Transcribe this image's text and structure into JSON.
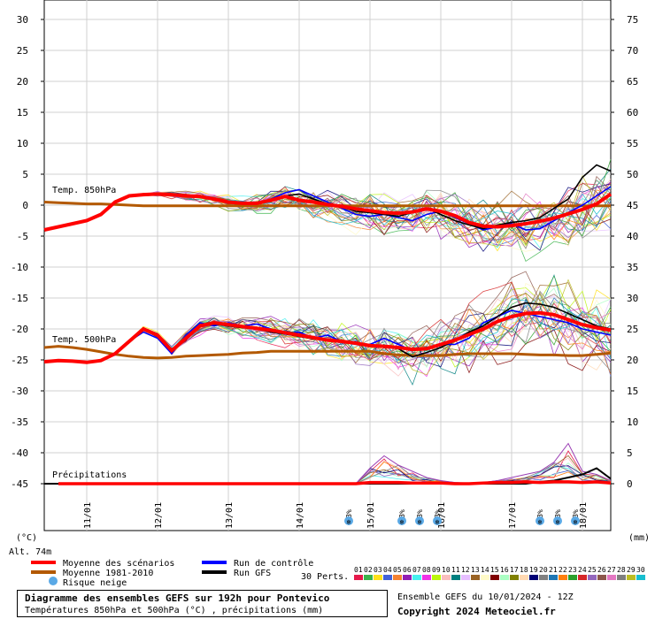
{
  "header_units": {
    "left": "(°C)",
    "right": "(mm)",
    "altitude": "Alt. 74m"
  },
  "legend": {
    "mean_scenarios": "Moyenne des scénarios",
    "control_run": "Run de contrôle",
    "mean_1981": "Moyenne 1981-2010",
    "gfs_run": "Run GFS",
    "snow_risk": "Risque neige",
    "perts_label": "30 Perts.",
    "colors": {
      "mean": "#ff0000",
      "control": "#0000ff",
      "climate": "#b35900",
      "gfs": "#000000"
    }
  },
  "members": {
    "labels": [
      "01",
      "02",
      "03",
      "04",
      "05",
      "06",
      "07",
      "08",
      "09",
      "10",
      "11",
      "12",
      "13",
      "14",
      "15",
      "16",
      "17",
      "18",
      "19",
      "20",
      "21",
      "22",
      "23",
      "24",
      "25",
      "26",
      "27",
      "28",
      "29",
      "30"
    ],
    "colors": [
      "#e6194b",
      "#3cb44b",
      "#ffe119",
      "#4363d8",
      "#f58231",
      "#911eb4",
      "#46f0f0",
      "#f032e6",
      "#bcf60c",
      "#fabebe",
      "#008080",
      "#e6beff",
      "#9a6324",
      "#fffac8",
      "#800000",
      "#aaffc3",
      "#808000",
      "#ffd8b1",
      "#000075",
      "#808080",
      "#1f77b4",
      "#ff7f0e",
      "#2ca02c",
      "#d62728",
      "#9467bd",
      "#8c564b",
      "#e377c2",
      "#7f7f7f",
      "#bcbd22",
      "#17becf"
    ]
  },
  "title": {
    "line1": "Diagramme des ensembles GEFS sur 192h pour Pontevico",
    "line2": "Températures 850hPa et 500hPa (°C) , précipitations (mm)"
  },
  "footer": {
    "run": "Ensemble GEFS du 10/01/2024 - 12Z",
    "copyright": "Copyright 2024 Meteociel.fr"
  },
  "chart_data": {
    "type": "line",
    "x_labels": [
      "11/01",
      "12/01",
      "13/01",
      "14/01",
      "15/01",
      "16/01",
      "17/01",
      "18/01"
    ],
    "left_axis": {
      "ticks": [
        30,
        25,
        20,
        15,
        10,
        5,
        0,
        -5,
        -10,
        -15,
        -20,
        -25,
        -30,
        -35,
        -40,
        -45
      ]
    },
    "right_axis": {
      "ticks": [
        75,
        70,
        65,
        60,
        55,
        50,
        45,
        40,
        35,
        30,
        25,
        20,
        15,
        10,
        5,
        0
      ]
    },
    "section_labels": {
      "t850": "Temp. 850hPa",
      "t500": "Temp. 500hPa",
      "precip": "Précipitations"
    },
    "day_range": [
      -0.6,
      7.4
    ],
    "t850": {
      "days": [
        -0.6,
        -0.4,
        -0.2,
        0.0,
        0.2,
        0.4,
        0.6,
        0.8,
        1.0,
        1.2,
        1.4,
        1.6,
        1.8,
        2.0,
        2.2,
        2.4,
        2.6,
        2.8,
        3.0,
        3.2,
        3.4,
        3.6,
        3.8,
        4.0,
        4.2,
        4.4,
        4.6,
        4.8,
        5.0,
        5.2,
        5.4,
        5.6,
        5.8,
        6.0,
        6.2,
        6.4,
        6.6,
        6.8,
        7.0,
        7.2,
        7.4
      ],
      "mean": [
        -4.0,
        -3.5,
        -3.0,
        -2.5,
        -1.5,
        0.5,
        1.5,
        1.7,
        1.8,
        1.7,
        1.5,
        1.4,
        1.0,
        0.5,
        0.3,
        0.3,
        0.8,
        1.4,
        0.8,
        0.5,
        0.1,
        -0.2,
        -0.6,
        -0.9,
        -1.2,
        -1.3,
        -1.1,
        -0.6,
        -1.0,
        -1.7,
        -2.8,
        -3.4,
        -3.5,
        -3.3,
        -3.0,
        -2.6,
        -2.1,
        -1.4,
        -0.7,
        0.2,
        1.8
      ],
      "control": [
        -4.0,
        -3.5,
        -3.0,
        -2.6,
        -1.4,
        0.5,
        1.4,
        1.6,
        1.7,
        1.6,
        1.4,
        1.3,
        0.9,
        0.6,
        0.5,
        0.3,
        1.0,
        2.0,
        2.5,
        1.5,
        0.5,
        -0.5,
        -1.5,
        -1.8,
        -1.5,
        -2.0,
        -2.5,
        -1.5,
        -1.0,
        -2.0,
        -3.0,
        -4.0,
        -3.5,
        -3.0,
        -4.0,
        -3.8,
        -2.5,
        -1.2,
        0.0,
        1.5,
        3.0
      ],
      "gfs": [
        -4.0,
        -3.5,
        -3.0,
        -2.4,
        -1.5,
        0.6,
        1.5,
        1.8,
        1.9,
        1.6,
        1.5,
        1.3,
        0.9,
        0.6,
        0.3,
        0.2,
        0.7,
        1.5,
        1.8,
        1.0,
        0.2,
        -0.3,
        -1.0,
        -1.2,
        -1.5,
        -1.8,
        -1.2,
        -0.5,
        -1.5,
        -2.5,
        -3.2,
        -3.8,
        -3.2,
        -2.8,
        -2.5,
        -2.0,
        -0.5,
        1.0,
        4.5,
        6.5,
        5.5
      ],
      "climate": [
        0.5,
        0.4,
        0.3,
        0.2,
        0.2,
        0.1,
        0.0,
        -0.1,
        -0.1,
        -0.1,
        -0.1,
        -0.1,
        -0.1,
        -0.1,
        -0.1,
        -0.1,
        -0.1,
        -0.1,
        -0.1,
        -0.1,
        -0.1,
        -0.1,
        -0.1,
        -0.1,
        -0.1,
        -0.1,
        -0.1,
        -0.1,
        -0.1,
        -0.1,
        -0.1,
        -0.1,
        -0.1,
        -0.1,
        -0.1,
        -0.1,
        -0.1,
        -0.1,
        -0.1,
        -0.1,
        -0.1
      ]
    },
    "t500": {
      "days": [
        -0.6,
        -0.4,
        -0.2,
        0.0,
        0.2,
        0.4,
        0.6,
        0.8,
        1.0,
        1.2,
        1.4,
        1.6,
        1.8,
        2.0,
        2.2,
        2.4,
        2.6,
        2.8,
        3.0,
        3.2,
        3.4,
        3.6,
        3.8,
        4.0,
        4.2,
        4.4,
        4.6,
        4.8,
        5.0,
        5.2,
        5.4,
        5.6,
        5.8,
        6.0,
        6.2,
        6.4,
        6.6,
        6.8,
        7.0,
        7.2,
        7.4
      ],
      "mean": [
        -25.3,
        -25.1,
        -25.2,
        -25.4,
        -25.1,
        -24.0,
        -22.0,
        -20.0,
        -21.0,
        -23.5,
        -21.5,
        -19.5,
        -19.0,
        -19.3,
        -19.6,
        -19.9,
        -20.2,
        -20.6,
        -21.0,
        -21.4,
        -21.8,
        -22.0,
        -22.3,
        -22.7,
        -22.8,
        -23.0,
        -23.3,
        -23.2,
        -22.5,
        -21.8,
        -20.9,
        -20.0,
        -18.8,
        -18.0,
        -17.5,
        -17.4,
        -17.7,
        -18.5,
        -19.3,
        -19.8,
        -20.2
      ],
      "control": [
        -25.3,
        -25.1,
        -25.1,
        -25.3,
        -25.0,
        -24.2,
        -22.0,
        -20.5,
        -21.5,
        -24.0,
        -21.0,
        -19.0,
        -19.5,
        -19.0,
        -19.5,
        -19.2,
        -20.0,
        -20.8,
        -20.5,
        -21.5,
        -21.0,
        -22.0,
        -22.5,
        -22.5,
        -21.5,
        -22.5,
        -23.5,
        -23.0,
        -22.5,
        -22.5,
        -21.5,
        -19.0,
        -18.0,
        -17.0,
        -17.5,
        -18.0,
        -18.5,
        -19.0,
        -20.0,
        -20.5,
        -21.0
      ],
      "gfs": [
        -25.3,
        -25.0,
        -25.2,
        -25.5,
        -25.2,
        -24.0,
        -22.2,
        -20.2,
        -21.2,
        -23.2,
        -21.8,
        -19.3,
        -19.2,
        -19.5,
        -19.8,
        -20.0,
        -20.5,
        -20.8,
        -21.2,
        -21.6,
        -21.8,
        -22.0,
        -22.3,
        -22.5,
        -22.8,
        -23.2,
        -24.5,
        -23.8,
        -23.0,
        -21.8,
        -20.5,
        -19.5,
        -18.0,
        -16.5,
        -15.8,
        -16.0,
        -16.5,
        -17.5,
        -18.5,
        -19.5,
        -20.0
      ],
      "climate": [
        -23.0,
        -22.8,
        -23.0,
        -23.3,
        -23.7,
        -24.1,
        -24.4,
        -24.6,
        -24.7,
        -24.6,
        -24.4,
        -24.3,
        -24.2,
        -24.1,
        -23.9,
        -23.8,
        -23.6,
        -23.6,
        -23.6,
        -23.6,
        -23.6,
        -23.6,
        -23.6,
        -23.6,
        -24.0,
        -24.2,
        -24.3,
        -24.3,
        -24.3,
        -24.1,
        -24.0,
        -24.0,
        -24.0,
        -24.0,
        -24.1,
        -24.2,
        -24.2,
        -24.3,
        -24.3,
        -24.1,
        -23.9
      ]
    },
    "precip": {
      "days": [
        -0.6,
        -0.4,
        -0.2,
        0.0,
        0.2,
        0.4,
        0.6,
        0.8,
        1.0,
        1.2,
        1.4,
        1.6,
        1.8,
        2.0,
        2.2,
        2.4,
        2.6,
        2.8,
        3.0,
        3.2,
        3.4,
        3.6,
        3.8,
        4.0,
        4.2,
        4.4,
        4.6,
        4.8,
        5.0,
        5.2,
        5.4,
        5.6,
        5.8,
        6.0,
        6.2,
        6.4,
        6.6,
        6.8,
        7.0,
        7.2,
        7.4
      ],
      "mean": [
        0,
        0,
        0,
        0,
        0,
        0,
        0,
        0,
        0,
        0,
        0,
        0,
        0,
        0,
        0,
        0,
        0,
        0,
        0,
        0,
        0,
        0,
        0,
        0.2,
        0.2,
        0.2,
        0.1,
        0.1,
        0.1,
        0,
        0,
        0.1,
        0.2,
        0.2,
        0.3,
        0.2,
        0.3,
        0.3,
        0.2,
        0.3,
        0.1
      ],
      "gfs": [
        0,
        0,
        0,
        0,
        0,
        0,
        0,
        0,
        0,
        0,
        0,
        0,
        0,
        0,
        0,
        0,
        0,
        0,
        0,
        0,
        0,
        0,
        0,
        0,
        0,
        0,
        0,
        0,
        0,
        0,
        0,
        0,
        0,
        0,
        0,
        0.3,
        0.5,
        1.0,
        1.5,
        2.5,
        0.8
      ],
      "max_member": [
        0,
        0,
        0,
        0,
        0,
        0,
        0,
        0,
        0,
        0,
        0,
        0,
        0,
        0,
        0,
        0,
        0,
        0,
        0,
        0,
        0,
        0,
        0,
        2.5,
        4.5,
        3.0,
        2.0,
        1.0,
        0.5,
        0.2,
        0.1,
        0.2,
        0.5,
        1.0,
        1.5,
        2.0,
        3.5,
        6.5,
        2.0,
        1.5,
        0.5
      ]
    },
    "snow_risk": {
      "label": "3%",
      "days": [
        3.7,
        4.45,
        4.7,
        4.95,
        6.4,
        6.65,
        6.9
      ]
    }
  }
}
